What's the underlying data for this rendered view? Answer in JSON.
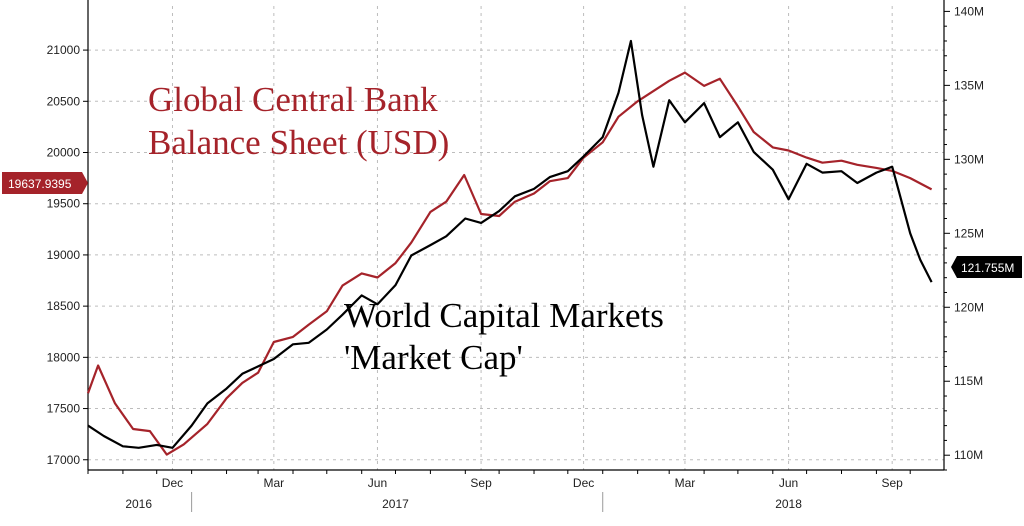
{
  "chart_data": {
    "type": "line",
    "x_axis": {
      "month_labels": [
        "Dec",
        "Mar",
        "Jun",
        "Sep",
        "Dec",
        "Mar",
        "Jun",
        "Sep"
      ],
      "year_labels": [
        "2016",
        "2017",
        "2018"
      ]
    },
    "y_left": {
      "ticks": [
        "17000",
        "17500",
        "18000",
        "18500",
        "19000",
        "19500",
        "20000",
        "20500",
        "21000"
      ],
      "range": [
        16900,
        21450
      ]
    },
    "y_right": {
      "ticks": [
        "110M",
        "115M",
        "120M",
        "125M",
        "130M",
        "135M",
        "140M"
      ],
      "range": [
        109,
        140.5
      ]
    },
    "grid": true,
    "annotations": {
      "central_bank_line1": "Global Central Bank",
      "central_bank_line2": "Balance Sheet (USD)",
      "markets_line1": "World Capital Markets",
      "markets_line2": "'Market Cap'"
    },
    "last_value_tags": {
      "left": "19637.9395",
      "right": "121.755M"
    },
    "series": [
      {
        "axis": "left",
        "color": "#a5232a",
        "x": [
          "2016-10-01",
          "2016-10-10",
          "2016-10-25",
          "2016-11-10",
          "2016-11-25",
          "2016-12-10",
          "2016-12-25",
          "2017-01-15",
          "2017-02-01",
          "2017-02-15",
          "2017-03-01",
          "2017-03-15",
          "2017-04-01",
          "2017-04-15",
          "2017-05-01",
          "2017-05-15",
          "2017-06-01",
          "2017-06-15",
          "2017-07-01",
          "2017-07-15",
          "2017-08-01",
          "2017-08-15",
          "2017-08-31",
          "2017-09-15",
          "2017-10-01",
          "2017-10-15",
          "2017-11-01",
          "2017-11-15",
          "2017-12-01",
          "2017-12-15",
          "2018-01-01",
          "2018-01-15",
          "2018-02-01",
          "2018-02-15",
          "2018-03-01",
          "2018-03-15",
          "2018-04-01",
          "2018-04-15",
          "2018-05-01",
          "2018-05-15",
          "2018-06-01",
          "2018-06-15",
          "2018-07-01",
          "2018-07-15",
          "2018-08-01",
          "2018-08-15",
          "2018-09-01",
          "2018-09-15",
          "2018-10-01",
          "2018-10-20"
        ],
        "values": [
          17650,
          17920,
          17550,
          17300,
          17280,
          17050,
          17150,
          17350,
          17600,
          17750,
          17850,
          18150,
          18200,
          18320,
          18450,
          18700,
          18820,
          18780,
          18920,
          19120,
          19420,
          19520,
          19780,
          19400,
          19380,
          19520,
          19600,
          19720,
          19750,
          19950,
          20100,
          20350,
          20500,
          20600,
          20700,
          20780,
          20650,
          20720,
          20450,
          20200,
          20050,
          20020,
          19950,
          19900,
          19920,
          19880,
          19850,
          19820,
          19750,
          19640
        ]
      },
      {
        "axis": "right",
        "color": "#000000",
        "x": [
          "2016-10-01",
          "2016-10-15",
          "2016-11-01",
          "2016-11-15",
          "2016-12-01",
          "2016-12-15",
          "2017-01-01",
          "2017-01-15",
          "2017-02-01",
          "2017-02-15",
          "2017-03-01",
          "2017-03-15",
          "2017-04-01",
          "2017-04-15",
          "2017-05-01",
          "2017-05-15",
          "2017-06-01",
          "2017-06-15",
          "2017-07-01",
          "2017-07-15",
          "2017-08-01",
          "2017-08-15",
          "2017-09-01",
          "2017-09-15",
          "2017-10-01",
          "2017-10-15",
          "2017-11-01",
          "2017-11-15",
          "2017-12-01",
          "2017-12-15",
          "2018-01-01",
          "2018-01-15",
          "2018-01-26",
          "2018-02-05",
          "2018-02-15",
          "2018-03-01",
          "2018-03-15",
          "2018-04-01",
          "2018-04-15",
          "2018-05-01",
          "2018-05-15",
          "2018-06-01",
          "2018-06-15",
          "2018-07-01",
          "2018-07-15",
          "2018-08-01",
          "2018-08-15",
          "2018-09-01",
          "2018-09-15",
          "2018-10-01",
          "2018-10-10",
          "2018-10-20"
        ],
        "values": [
          112.0,
          111.3,
          110.6,
          110.5,
          110.7,
          110.5,
          112.0,
          113.5,
          114.5,
          115.5,
          116.0,
          116.5,
          117.5,
          117.6,
          118.5,
          119.5,
          120.8,
          120.2,
          121.5,
          123.5,
          124.2,
          124.8,
          126.0,
          125.7,
          126.5,
          127.5,
          128.0,
          128.8,
          129.2,
          130.2,
          131.5,
          134.5,
          138.0,
          133.0,
          129.5,
          134.0,
          132.5,
          133.8,
          131.5,
          132.5,
          130.5,
          129.3,
          127.3,
          129.7,
          129.1,
          129.2,
          128.4,
          129.1,
          129.5,
          125.0,
          123.2,
          121.7
        ]
      }
    ]
  },
  "colors": {
    "central_bank": "#a5232a",
    "market_cap": "#000000"
  }
}
